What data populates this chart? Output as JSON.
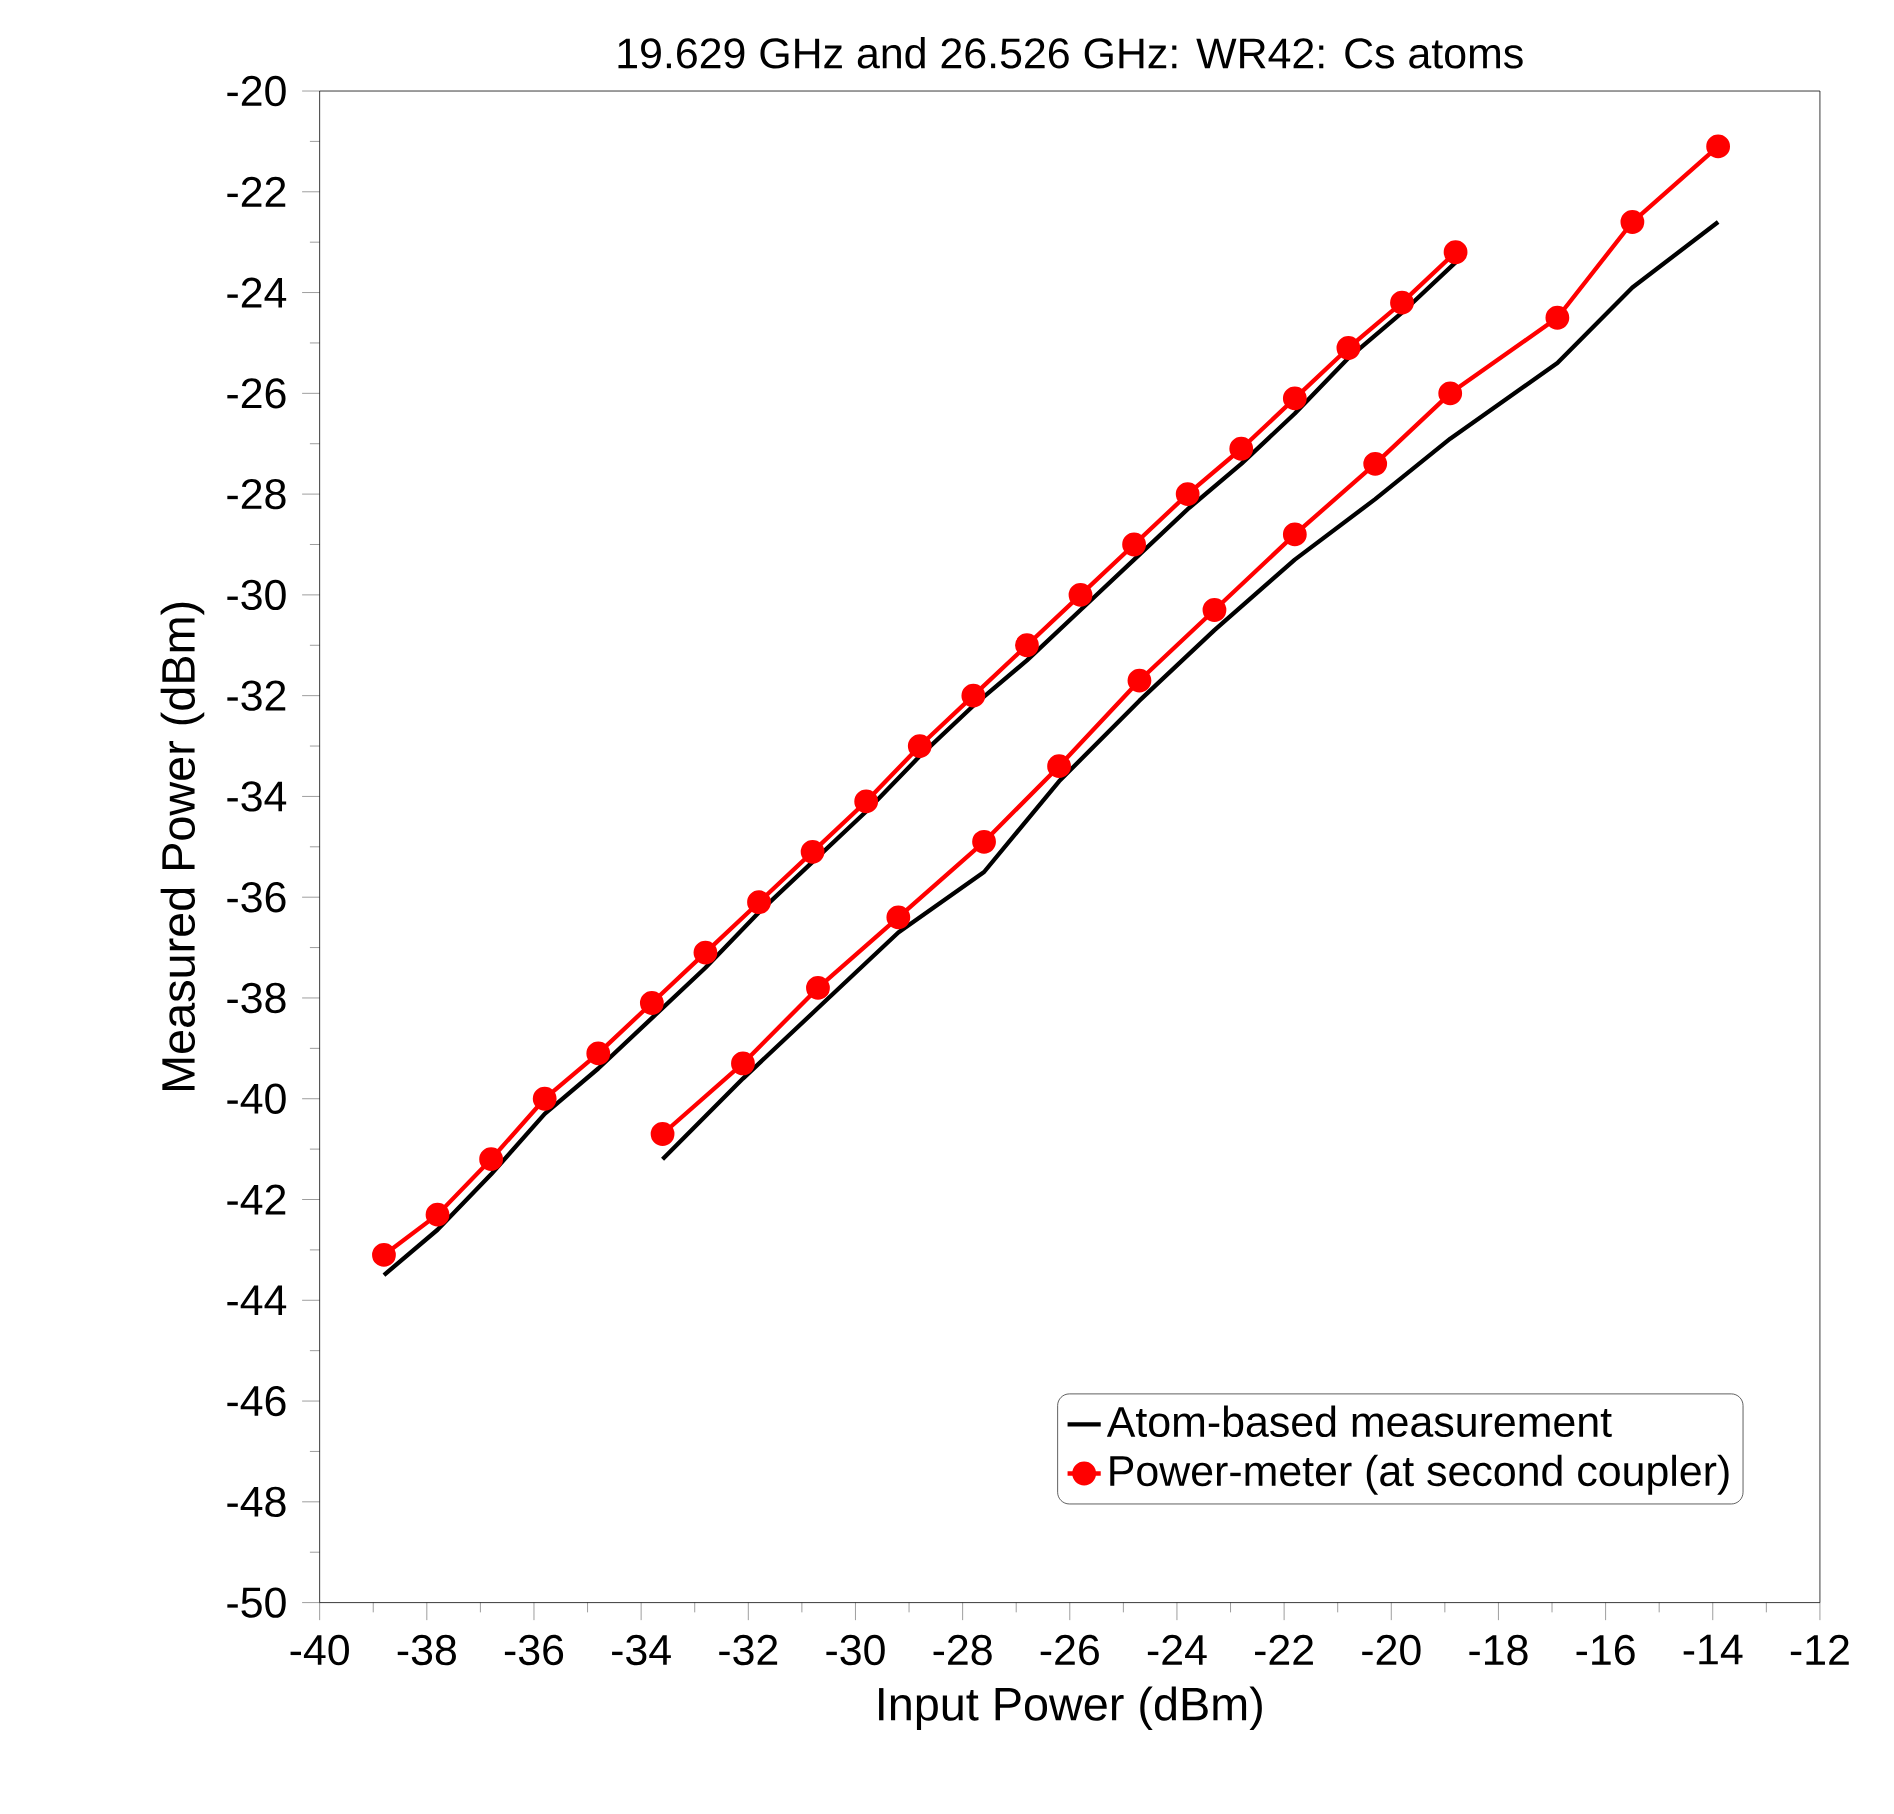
{
  "chart_data": {
    "type": "line",
    "title": "19.629 GHz and 26.526 GHz: WR42: Cs atoms",
    "xlabel": "Input Power (dBm)",
    "ylabel": "Measured Power (dBm)",
    "xlim": [
      -40,
      -12
    ],
    "ylim": [
      -50,
      -20
    ],
    "xticks": [
      -40,
      -38,
      -36,
      -34,
      -32,
      -30,
      -28,
      -26,
      -24,
      -22,
      -20,
      -18,
      -16,
      -14,
      -12
    ],
    "yticks": [
      -50,
      -48,
      -46,
      -44,
      -42,
      -40,
      -38,
      -36,
      -34,
      -32,
      -30,
      -28,
      -26,
      -24,
      -22,
      -20
    ],
    "legend": "bottom right",
    "series": [
      {
        "name": "Atom-based measurement",
        "color": "#000000",
        "marker": "none",
        "x": [
          -38.8,
          -37.8,
          -36.8,
          -35.8,
          -34.8,
          -33.8,
          -32.8,
          -31.8,
          -30.8,
          -29.8,
          -28.8,
          -27.8,
          -26.8,
          -25.8,
          -24.8,
          -23.8,
          -22.8,
          -21.8,
          -20.8,
          -19.8,
          -18.8
        ],
        "values": [
          -43.5,
          -42.6,
          -41.5,
          -40.3,
          -39.4,
          -38.4,
          -37.4,
          -36.3,
          -35.3,
          -34.3,
          -33.2,
          -32.2,
          -31.3,
          -30.3,
          -29.3,
          -28.3,
          -27.4,
          -26.4,
          -25.3,
          -24.4,
          -23.4
        ]
      },
      {
        "color": "#000000",
        "marker": "none",
        "x": [
          -33.6,
          -32.1,
          -30.7,
          -29.2,
          -27.6,
          -26.2,
          -24.7,
          -23.3,
          -21.8,
          -20.3,
          -18.9,
          -16.9,
          -15.5,
          -13.9
        ],
        "values": [
          -41.2,
          -39.6,
          -38.2,
          -36.7,
          -35.5,
          -33.7,
          -32.1,
          -30.7,
          -29.3,
          -28.1,
          -26.9,
          -25.4,
          -23.9,
          -22.6
        ]
      },
      {
        "name": "Power-meter (at second coupler)",
        "color": "#ff0000",
        "marker": "circle",
        "x": [
          -38.8,
          -37.8,
          -36.8,
          -35.8,
          -34.8,
          -33.8,
          -32.8,
          -31.8,
          -30.8,
          -29.8,
          -28.8,
          -27.8,
          -26.8,
          -25.8,
          -24.8,
          -23.8,
          -22.8,
          -21.8,
          -20.8,
          -19.8,
          -18.8
        ],
        "values": [
          -43.1,
          -42.3,
          -41.2,
          -40.0,
          -39.1,
          -38.1,
          -37.1,
          -36.1,
          -35.1,
          -34.1,
          -33.0,
          -32.0,
          -31.0,
          -30.0,
          -29.0,
          -28.0,
          -27.1,
          -26.1,
          -25.1,
          -24.2,
          -23.2
        ]
      },
      {
        "color": "#ff0000",
        "marker": "circle",
        "x": [
          -33.6,
          -32.1,
          -30.7,
          -29.2,
          -27.6,
          -26.2,
          -24.7,
          -23.3,
          -21.8,
          -20.3,
          -18.9,
          -16.9,
          -15.5,
          -13.9
        ],
        "values": [
          -40.7,
          -39.3,
          -37.8,
          -36.4,
          -34.9,
          -33.4,
          -31.7,
          -30.3,
          -28.8,
          -27.4,
          -26.0,
          -24.5,
          -22.6,
          -21.1
        ]
      }
    ]
  }
}
